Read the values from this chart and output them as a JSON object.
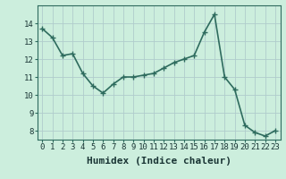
{
  "x": [
    0,
    1,
    2,
    3,
    4,
    5,
    6,
    7,
    8,
    9,
    10,
    11,
    12,
    13,
    14,
    15,
    16,
    17,
    18,
    19,
    20,
    21,
    22,
    23
  ],
  "y": [
    13.7,
    13.2,
    12.2,
    12.3,
    11.2,
    10.5,
    10.1,
    10.6,
    11.0,
    11.0,
    11.1,
    11.2,
    11.5,
    11.8,
    12.0,
    12.2,
    13.5,
    14.5,
    11.0,
    10.3,
    8.3,
    7.9,
    7.7,
    8.0
  ],
  "line_color": "#2e6b5e",
  "marker": "+",
  "marker_size": 5,
  "linewidth": 1.2,
  "bg_color": "#cceedd",
  "grid_color": "#b0cccc",
  "xlabel": "Humidex (Indice chaleur)",
  "xlabel_fontsize": 8,
  "tick_fontsize": 6.5,
  "ylim": [
    7.5,
    15.0
  ],
  "yticks": [
    8,
    9,
    10,
    11,
    12,
    13,
    14
  ],
  "xticks": [
    0,
    1,
    2,
    3,
    4,
    5,
    6,
    7,
    8,
    9,
    10,
    11,
    12,
    13,
    14,
    15,
    16,
    17,
    18,
    19,
    20,
    21,
    22,
    23
  ]
}
